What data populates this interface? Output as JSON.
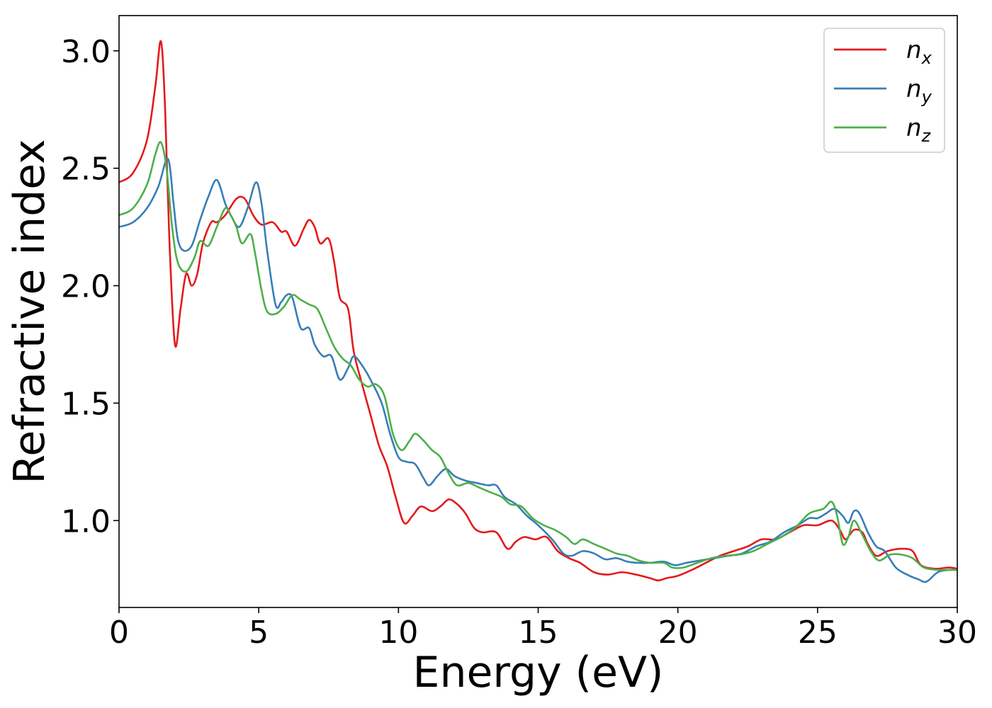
{
  "chart_data": {
    "type": "line",
    "xlabel": "Energy (eV)",
    "ylabel": "Refractive index",
    "xlim": [
      0,
      30
    ],
    "ylim": [
      0.63,
      3.15
    ],
    "x_ticks": [
      0,
      5,
      10,
      15,
      20,
      25,
      30
    ],
    "y_ticks": [
      1.0,
      1.5,
      2.0,
      2.5,
      3.0
    ],
    "x_tick_labels": [
      "0",
      "5",
      "10",
      "15",
      "20",
      "25",
      "30"
    ],
    "y_tick_labels": [
      "1.0",
      "1.5",
      "2.0",
      "2.5",
      "3.0"
    ],
    "grid": false,
    "legend_position": "upper-right",
    "series": [
      {
        "name": "n_x",
        "label_base": "n",
        "label_sub": "x",
        "color": "#e41a1c",
        "points": [
          [
            0,
            2.44
          ],
          [
            0.5,
            2.48
          ],
          [
            1.0,
            2.62
          ],
          [
            1.3,
            2.85
          ],
          [
            1.5,
            3.04
          ],
          [
            1.65,
            2.75
          ],
          [
            1.8,
            2.2
          ],
          [
            2.0,
            1.75
          ],
          [
            2.2,
            1.9
          ],
          [
            2.4,
            2.05
          ],
          [
            2.6,
            2.0
          ],
          [
            2.8,
            2.05
          ],
          [
            3.0,
            2.18
          ],
          [
            3.3,
            2.27
          ],
          [
            3.5,
            2.27
          ],
          [
            3.8,
            2.3
          ],
          [
            4.2,
            2.37
          ],
          [
            4.5,
            2.37
          ],
          [
            4.8,
            2.3
          ],
          [
            5.1,
            2.26
          ],
          [
            5.5,
            2.27
          ],
          [
            5.8,
            2.23
          ],
          [
            6.0,
            2.23
          ],
          [
            6.3,
            2.17
          ],
          [
            6.6,
            2.24
          ],
          [
            6.8,
            2.28
          ],
          [
            7.0,
            2.25
          ],
          [
            7.2,
            2.18
          ],
          [
            7.5,
            2.2
          ],
          [
            7.7,
            2.1
          ],
          [
            7.9,
            1.95
          ],
          [
            8.2,
            1.9
          ],
          [
            8.4,
            1.72
          ],
          [
            8.7,
            1.58
          ],
          [
            9.0,
            1.45
          ],
          [
            9.3,
            1.32
          ],
          [
            9.6,
            1.23
          ],
          [
            9.9,
            1.1
          ],
          [
            10.2,
            0.99
          ],
          [
            10.5,
            1.02
          ],
          [
            10.8,
            1.06
          ],
          [
            11.2,
            1.04
          ],
          [
            11.5,
            1.06
          ],
          [
            11.8,
            1.09
          ],
          [
            12.1,
            1.07
          ],
          [
            12.4,
            1.03
          ],
          [
            12.7,
            0.97
          ],
          [
            13.0,
            0.95
          ],
          [
            13.5,
            0.95
          ],
          [
            13.9,
            0.88
          ],
          [
            14.2,
            0.91
          ],
          [
            14.5,
            0.93
          ],
          [
            14.9,
            0.92
          ],
          [
            15.3,
            0.93
          ],
          [
            15.7,
            0.87
          ],
          [
            16.1,
            0.84
          ],
          [
            16.5,
            0.82
          ],
          [
            17.0,
            0.78
          ],
          [
            17.5,
            0.77
          ],
          [
            18.0,
            0.78
          ],
          [
            18.5,
            0.77
          ],
          [
            19.0,
            0.755
          ],
          [
            19.3,
            0.745
          ],
          [
            19.6,
            0.755
          ],
          [
            20.0,
            0.765
          ],
          [
            20.5,
            0.79
          ],
          [
            21.0,
            0.82
          ],
          [
            21.5,
            0.85
          ],
          [
            22.0,
            0.87
          ],
          [
            22.5,
            0.89
          ],
          [
            23.0,
            0.92
          ],
          [
            23.5,
            0.92
          ],
          [
            24.0,
            0.95
          ],
          [
            24.5,
            0.98
          ],
          [
            25.0,
            0.98
          ],
          [
            25.5,
            1.0
          ],
          [
            25.8,
            0.96
          ],
          [
            26.0,
            0.92
          ],
          [
            26.3,
            0.96
          ],
          [
            26.6,
            0.95
          ],
          [
            26.8,
            0.9
          ],
          [
            27.1,
            0.85
          ],
          [
            27.5,
            0.87
          ],
          [
            28.0,
            0.88
          ],
          [
            28.4,
            0.87
          ],
          [
            28.7,
            0.81
          ],
          [
            29.2,
            0.795
          ],
          [
            29.7,
            0.8
          ],
          [
            30.0,
            0.795
          ]
        ]
      },
      {
        "name": "n_y",
        "label_base": "n",
        "label_sub": "y",
        "color": "#377eb8",
        "points": [
          [
            0,
            2.25
          ],
          [
            0.5,
            2.27
          ],
          [
            1.0,
            2.33
          ],
          [
            1.4,
            2.42
          ],
          [
            1.75,
            2.54
          ],
          [
            1.95,
            2.35
          ],
          [
            2.1,
            2.2
          ],
          [
            2.3,
            2.15
          ],
          [
            2.6,
            2.17
          ],
          [
            2.9,
            2.28
          ],
          [
            3.2,
            2.38
          ],
          [
            3.5,
            2.45
          ],
          [
            3.8,
            2.35
          ],
          [
            4.0,
            2.3
          ],
          [
            4.3,
            2.25
          ],
          [
            4.6,
            2.33
          ],
          [
            4.9,
            2.44
          ],
          [
            5.1,
            2.35
          ],
          [
            5.3,
            2.15
          ],
          [
            5.6,
            1.92
          ],
          [
            5.8,
            1.93
          ],
          [
            6.0,
            1.96
          ],
          [
            6.2,
            1.95
          ],
          [
            6.5,
            1.82
          ],
          [
            6.8,
            1.82
          ],
          [
            7.0,
            1.75
          ],
          [
            7.3,
            1.7
          ],
          [
            7.6,
            1.7
          ],
          [
            7.9,
            1.6
          ],
          [
            8.2,
            1.65
          ],
          [
            8.4,
            1.7
          ],
          [
            8.7,
            1.66
          ],
          [
            9.0,
            1.6
          ],
          [
            9.4,
            1.5
          ],
          [
            9.7,
            1.37
          ],
          [
            10.0,
            1.27
          ],
          [
            10.3,
            1.25
          ],
          [
            10.6,
            1.24
          ],
          [
            10.9,
            1.18
          ],
          [
            11.1,
            1.15
          ],
          [
            11.4,
            1.19
          ],
          [
            11.7,
            1.22
          ],
          [
            12.0,
            1.19
          ],
          [
            12.4,
            1.17
          ],
          [
            12.8,
            1.16
          ],
          [
            13.2,
            1.15
          ],
          [
            13.5,
            1.15
          ],
          [
            13.8,
            1.1
          ],
          [
            14.2,
            1.07
          ],
          [
            14.6,
            1.02
          ],
          [
            15.0,
            0.98
          ],
          [
            15.5,
            0.92
          ],
          [
            15.9,
            0.86
          ],
          [
            16.2,
            0.85
          ],
          [
            16.6,
            0.87
          ],
          [
            17.0,
            0.86
          ],
          [
            17.4,
            0.835
          ],
          [
            17.8,
            0.84
          ],
          [
            18.2,
            0.825
          ],
          [
            18.6,
            0.82
          ],
          [
            19.0,
            0.82
          ],
          [
            19.5,
            0.825
          ],
          [
            19.9,
            0.81
          ],
          [
            20.3,
            0.82
          ],
          [
            20.8,
            0.83
          ],
          [
            21.3,
            0.84
          ],
          [
            21.8,
            0.85
          ],
          [
            22.3,
            0.86
          ],
          [
            22.8,
            0.89
          ],
          [
            23.3,
            0.91
          ],
          [
            23.8,
            0.95
          ],
          [
            24.3,
            0.98
          ],
          [
            24.7,
            1.01
          ],
          [
            25.0,
            1.01
          ],
          [
            25.3,
            1.03
          ],
          [
            25.6,
            1.05
          ],
          [
            25.9,
            1.02
          ],
          [
            26.1,
            0.99
          ],
          [
            26.3,
            1.04
          ],
          [
            26.5,
            1.03
          ],
          [
            26.8,
            0.95
          ],
          [
            27.1,
            0.89
          ],
          [
            27.4,
            0.87
          ],
          [
            27.8,
            0.8
          ],
          [
            28.2,
            0.77
          ],
          [
            28.6,
            0.75
          ],
          [
            28.9,
            0.74
          ],
          [
            29.3,
            0.78
          ],
          [
            29.7,
            0.79
          ],
          [
            30.0,
            0.79
          ]
        ]
      },
      {
        "name": "n_z",
        "label_base": "n",
        "label_sub": "z",
        "color": "#4daf4a",
        "points": [
          [
            0,
            2.3
          ],
          [
            0.5,
            2.33
          ],
          [
            1.0,
            2.43
          ],
          [
            1.3,
            2.56
          ],
          [
            1.5,
            2.61
          ],
          [
            1.7,
            2.5
          ],
          [
            1.9,
            2.25
          ],
          [
            2.1,
            2.1
          ],
          [
            2.4,
            2.06
          ],
          [
            2.7,
            2.12
          ],
          [
            2.9,
            2.19
          ],
          [
            3.2,
            2.17
          ],
          [
            3.5,
            2.25
          ],
          [
            3.8,
            2.33
          ],
          [
            4.0,
            2.3
          ],
          [
            4.2,
            2.25
          ],
          [
            4.4,
            2.18
          ],
          [
            4.7,
            2.22
          ],
          [
            4.85,
            2.15
          ],
          [
            5.1,
            1.98
          ],
          [
            5.3,
            1.89
          ],
          [
            5.6,
            1.88
          ],
          [
            5.9,
            1.91
          ],
          [
            6.2,
            1.96
          ],
          [
            6.5,
            1.94
          ],
          [
            6.8,
            1.92
          ],
          [
            7.1,
            1.9
          ],
          [
            7.4,
            1.82
          ],
          [
            7.7,
            1.74
          ],
          [
            8.0,
            1.69
          ],
          [
            8.3,
            1.66
          ],
          [
            8.6,
            1.6
          ],
          [
            8.9,
            1.57
          ],
          [
            9.2,
            1.58
          ],
          [
            9.5,
            1.53
          ],
          [
            9.8,
            1.37
          ],
          [
            10.1,
            1.3
          ],
          [
            10.4,
            1.34
          ],
          [
            10.6,
            1.37
          ],
          [
            10.9,
            1.34
          ],
          [
            11.2,
            1.3
          ],
          [
            11.5,
            1.27
          ],
          [
            11.8,
            1.2
          ],
          [
            12.1,
            1.15
          ],
          [
            12.5,
            1.16
          ],
          [
            12.9,
            1.14
          ],
          [
            13.3,
            1.12
          ],
          [
            13.7,
            1.1
          ],
          [
            14.0,
            1.07
          ],
          [
            14.4,
            1.06
          ],
          [
            14.8,
            1.01
          ],
          [
            15.2,
            0.98
          ],
          [
            15.6,
            0.96
          ],
          [
            16.0,
            0.93
          ],
          [
            16.3,
            0.9
          ],
          [
            16.6,
            0.92
          ],
          [
            17.0,
            0.9
          ],
          [
            17.4,
            0.88
          ],
          [
            17.8,
            0.86
          ],
          [
            18.2,
            0.85
          ],
          [
            18.6,
            0.83
          ],
          [
            19.0,
            0.82
          ],
          [
            19.5,
            0.82
          ],
          [
            19.8,
            0.8
          ],
          [
            20.2,
            0.8
          ],
          [
            20.7,
            0.82
          ],
          [
            21.2,
            0.84
          ],
          [
            21.7,
            0.85
          ],
          [
            22.2,
            0.855
          ],
          [
            22.7,
            0.87
          ],
          [
            23.2,
            0.9
          ],
          [
            23.7,
            0.93
          ],
          [
            24.2,
            0.97
          ],
          [
            24.7,
            1.03
          ],
          [
            25.2,
            1.05
          ],
          [
            25.5,
            1.08
          ],
          [
            25.7,
            1.02
          ],
          [
            25.9,
            0.9
          ],
          [
            26.1,
            0.93
          ],
          [
            26.3,
            1.0
          ],
          [
            26.6,
            0.94
          ],
          [
            26.9,
            0.87
          ],
          [
            27.2,
            0.83
          ],
          [
            27.6,
            0.855
          ],
          [
            28.0,
            0.855
          ],
          [
            28.4,
            0.84
          ],
          [
            28.8,
            0.8
          ],
          [
            29.3,
            0.79
          ],
          [
            29.7,
            0.79
          ],
          [
            30.0,
            0.79
          ]
        ]
      }
    ]
  }
}
